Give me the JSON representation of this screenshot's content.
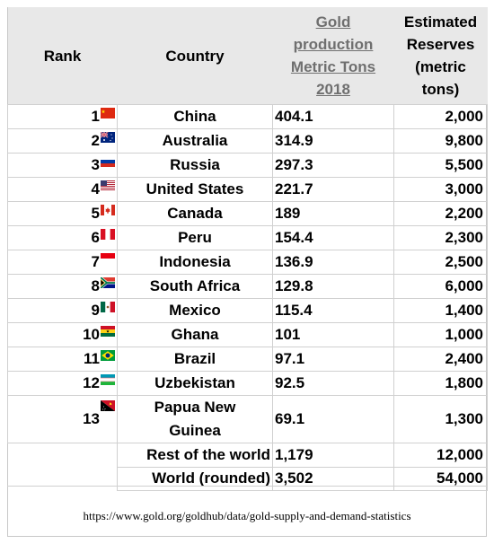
{
  "headers": {
    "rank": "Rank",
    "country": "Country",
    "gold_lines": [
      "Gold",
      "production",
      "Metric Tons",
      "2018"
    ],
    "reserves_lines": [
      "Estimated",
      "Reserves",
      "(metric",
      "tons)"
    ]
  },
  "rows": [
    {
      "rank": "1",
      "country": "China",
      "gold": "404.1",
      "reserves": "2,000",
      "flag": "china"
    },
    {
      "rank": "2",
      "country": "Australia",
      "gold": "314.9",
      "reserves": "9,800",
      "flag": "australia"
    },
    {
      "rank": "3",
      "country": "Russia",
      "gold": "297.3",
      "reserves": "5,500",
      "flag": "russia"
    },
    {
      "rank": "4",
      "country": "United States",
      "gold": "221.7",
      "reserves": "3,000",
      "flag": "usa"
    },
    {
      "rank": "5",
      "country": "Canada",
      "gold": "189",
      "reserves": "2,200",
      "flag": "canada"
    },
    {
      "rank": "6",
      "country": "Peru",
      "gold": "154.4",
      "reserves": "2,300",
      "flag": "peru"
    },
    {
      "rank": "7",
      "country": "Indonesia",
      "gold": "136.9",
      "reserves": "2,500",
      "flag": "indonesia"
    },
    {
      "rank": "8",
      "country": "South Africa",
      "gold": "129.8",
      "reserves": "6,000",
      "flag": "south-africa"
    },
    {
      "rank": "9",
      "country": "Mexico",
      "gold": "115.4",
      "reserves": "1,400",
      "flag": "mexico"
    },
    {
      "rank": "10",
      "country": "Ghana",
      "gold": "101",
      "reserves": "1,000",
      "flag": "ghana"
    },
    {
      "rank": "11",
      "country": "Brazil",
      "gold": "97.1",
      "reserves": "2,400",
      "flag": "brazil"
    },
    {
      "rank": "12",
      "country": "Uzbekistan",
      "gold": "92.5",
      "reserves": "1,800",
      "flag": "uzbekistan"
    },
    {
      "rank": "13",
      "country": "Papua New Guinea",
      "gold": "69.1",
      "reserves": "1,300",
      "flag": "papua-new-guinea"
    }
  ],
  "totals": [
    {
      "label": "Rest of the world",
      "gold": "1,179",
      "reserves": "12,000"
    },
    {
      "label": "World (rounded)",
      "gold": "3,502",
      "reserves": "54,000"
    }
  ],
  "source": "https://www.gold.org/goldhub/data/gold-supply-and-demand-statistics"
}
